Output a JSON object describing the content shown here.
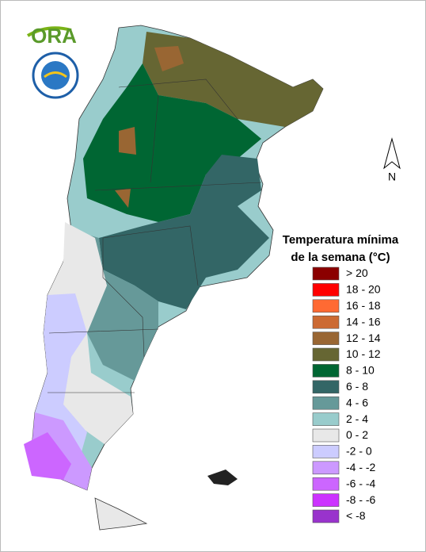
{
  "logo": {
    "text": "ORA"
  },
  "north_label": "N",
  "legend": {
    "title_lines": [
      "Temperatura mínima",
      "de la semana (°C)"
    ],
    "items": [
      {
        "label": "> 20",
        "color": "#8b0000"
      },
      {
        "label": "18 - 20",
        "color": "#ff0000"
      },
      {
        "label": "16 - 18",
        "color": "#ff6a33"
      },
      {
        "label": "14 - 16",
        "color": "#cc6a33"
      },
      {
        "label": "12 - 14",
        "color": "#996633"
      },
      {
        "label": "10 - 12",
        "color": "#666633"
      },
      {
        "label": "8 - 10",
        "color": "#006633"
      },
      {
        "label": "6 - 8",
        "color": "#336666"
      },
      {
        "label": "4 - 6",
        "color": "#669999"
      },
      {
        "label": "2 - 4",
        "color": "#99cccc"
      },
      {
        "label": "0 - 2",
        "color": "#e8e8e8"
      },
      {
        "label": "-2 - 0",
        "color": "#ccccff"
      },
      {
        "label": "-4 - -2",
        "color": "#cc99ff"
      },
      {
        "label": "-6 - -4",
        "color": "#cc66ff"
      },
      {
        "label": "-8 - -6",
        "color": "#cc33ff"
      },
      {
        "label": "< -8",
        "color": "#9933cc"
      }
    ]
  }
}
